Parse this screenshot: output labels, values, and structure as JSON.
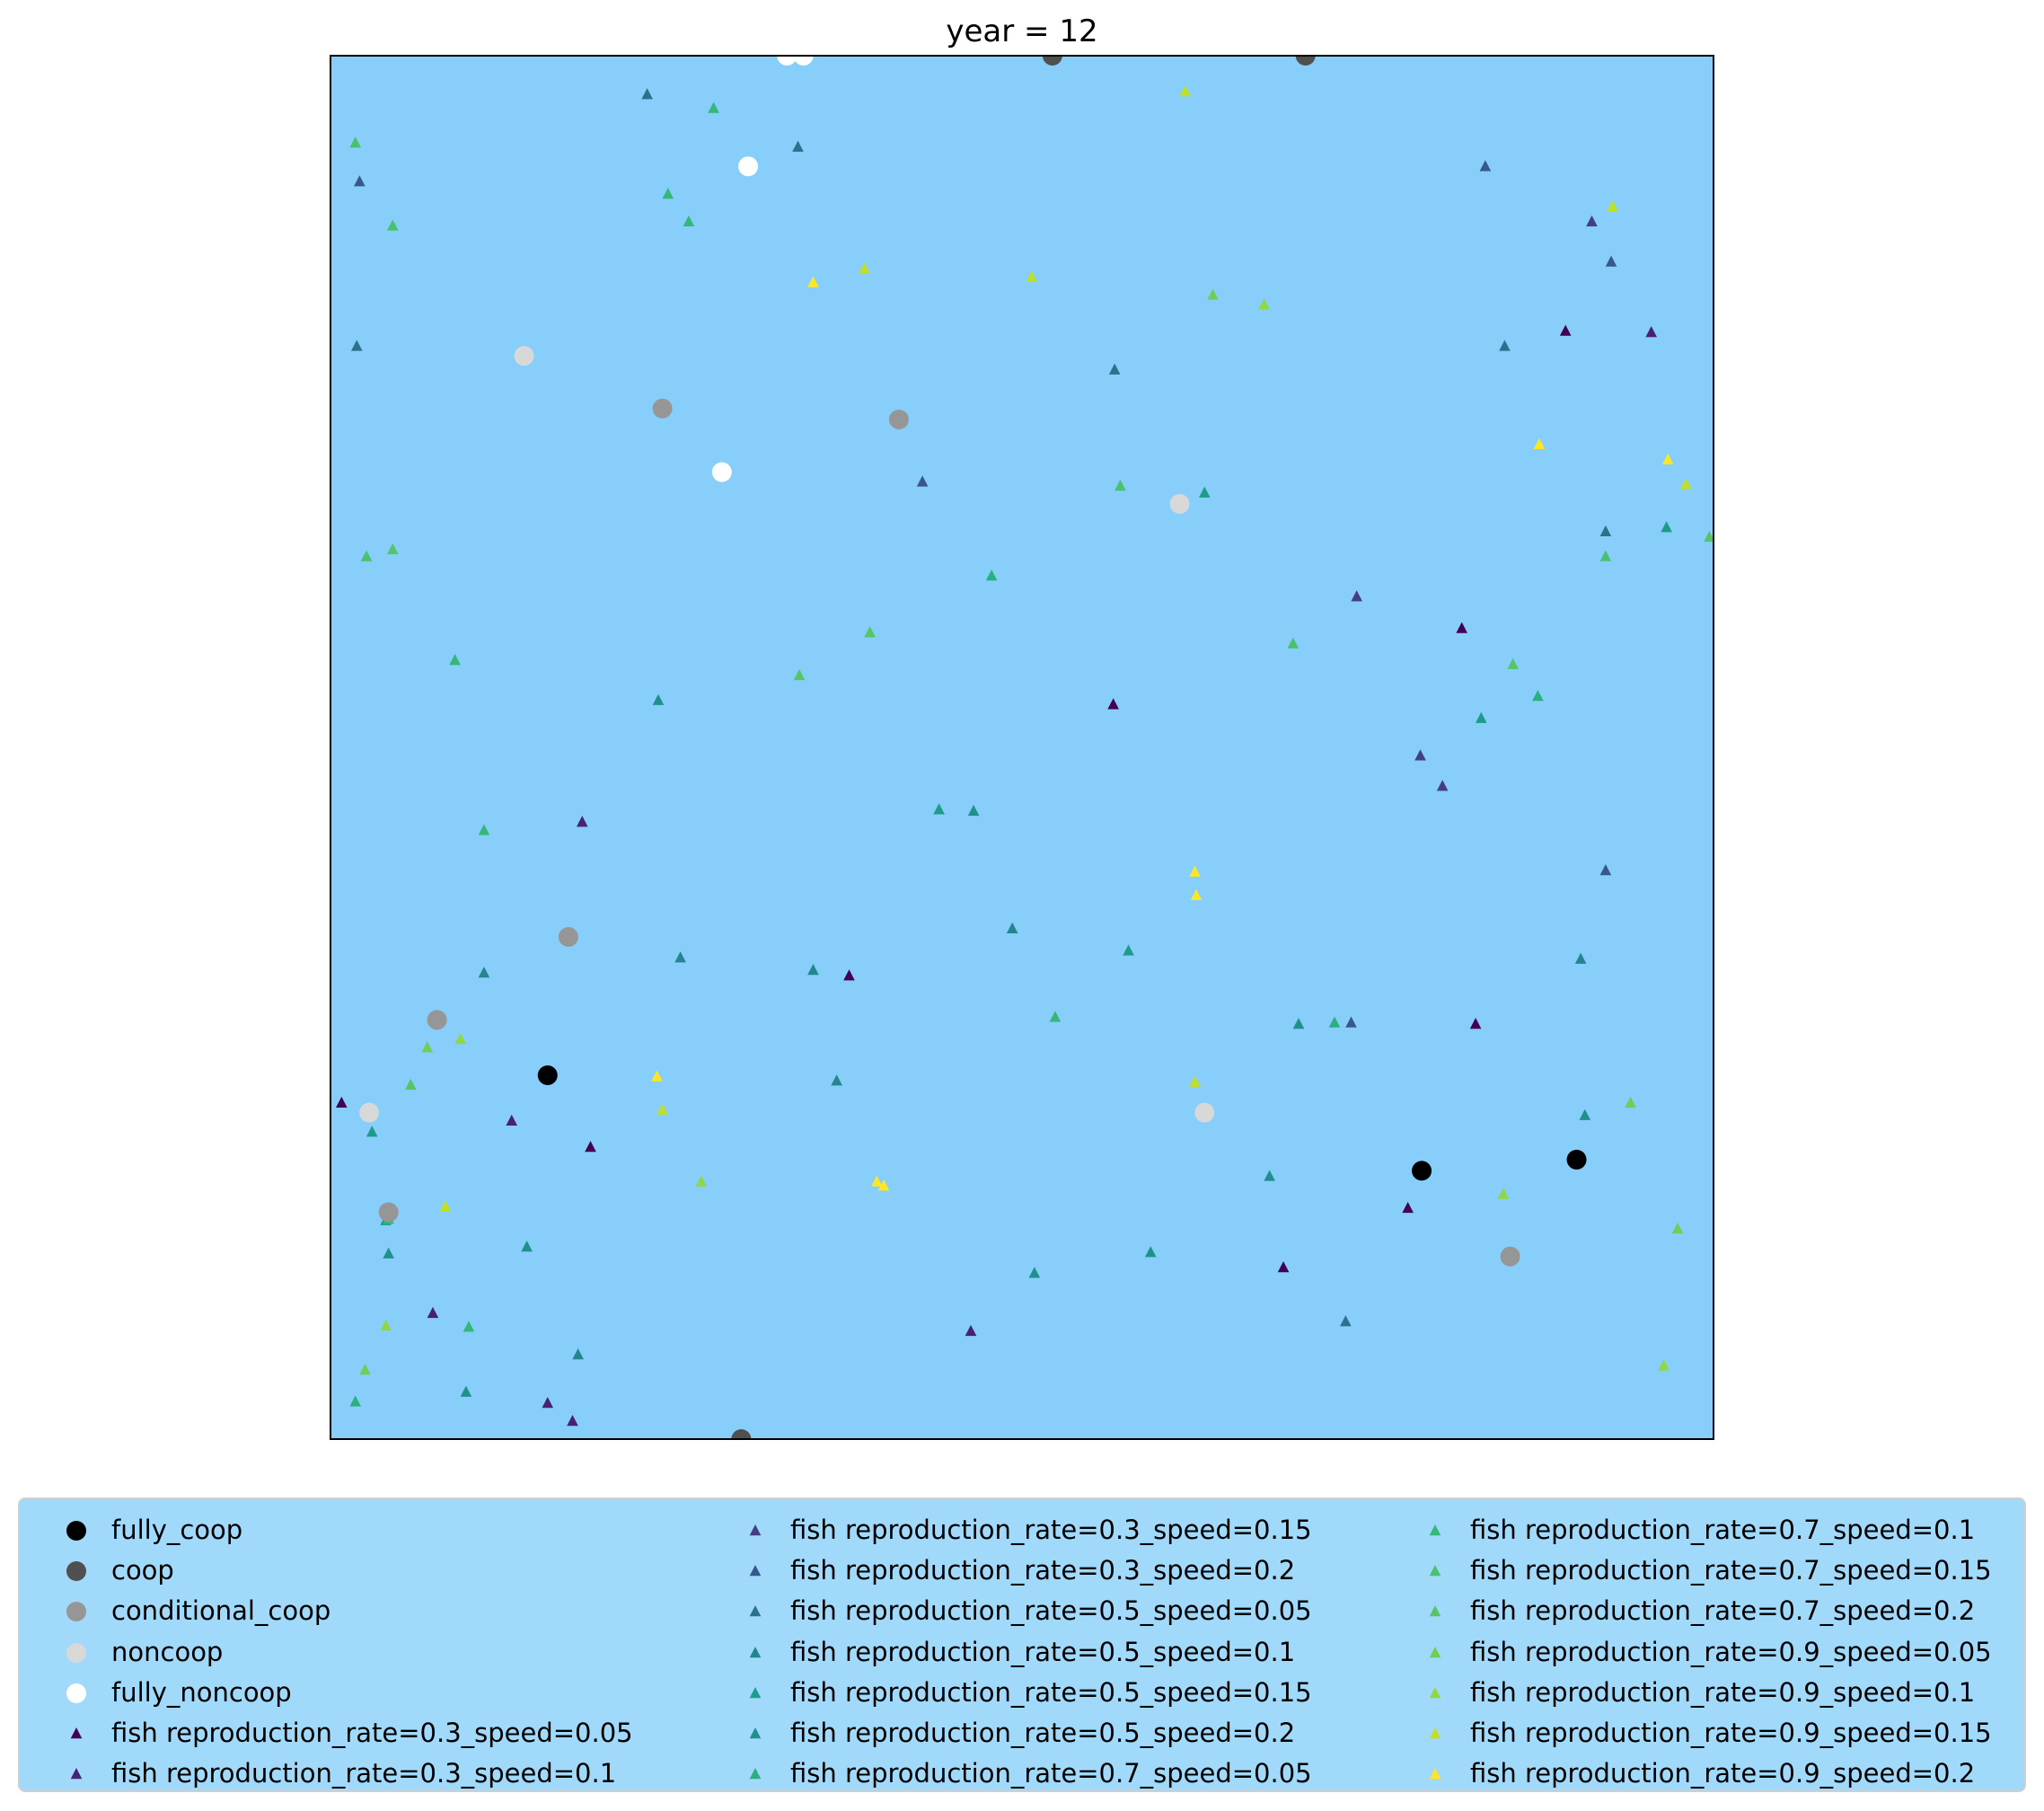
{
  "chart_data": {
    "type": "scatter",
    "title": "year = 12",
    "xlabel": "",
    "ylabel": "",
    "xlim": [
      0,
      1
    ],
    "ylim": [
      0,
      1
    ],
    "axis_ticks": "none",
    "grid": false,
    "background": "#87cefa",
    "legend_placement": "below plot, 3 columns",
    "series": [
      {
        "name": "fully_coop",
        "marker": "circle",
        "color": "#000000",
        "points": [
          [
            0.157,
            0.263
          ],
          [
            0.789,
            0.194
          ],
          [
            0.901,
            0.202
          ]
        ]
      },
      {
        "name": "coop",
        "marker": "circle",
        "color": "#505050",
        "points": [
          [
            0.522,
            1.0
          ],
          [
            0.705,
            1.0
          ],
          [
            0.297,
            0.0
          ]
        ]
      },
      {
        "name": "conditional_coop",
        "marker": "circle",
        "color": "#969696",
        "points": [
          [
            0.24,
            0.745
          ],
          [
            0.411,
            0.737
          ],
          [
            0.172,
            0.363
          ],
          [
            0.077,
            0.303
          ],
          [
            0.042,
            0.164
          ],
          [
            0.853,
            0.132
          ]
        ]
      },
      {
        "name": "noncoop",
        "marker": "circle",
        "color": "#d8d8d8",
        "points": [
          [
            0.14,
            0.783
          ],
          [
            0.614,
            0.676
          ],
          [
            0.028,
            0.236
          ],
          [
            0.632,
            0.236
          ]
        ]
      },
      {
        "name": "fully_noncoop",
        "marker": "circle",
        "color": "#ffffff",
        "points": [
          [
            0.33,
            1.0
          ],
          [
            0.342,
            1.0
          ],
          [
            0.302,
            0.92
          ],
          [
            0.283,
            0.699
          ]
        ]
      },
      {
        "name": "fish reproduction_rate=0.3_speed=0.05",
        "marker": "triangle",
        "color": "#440154",
        "points": [
          [
            0.893,
            0.801
          ],
          [
            0.818,
            0.586
          ],
          [
            0.566,
            0.531
          ],
          [
            0.375,
            0.335
          ],
          [
            0.008,
            0.243
          ],
          [
            0.188,
            0.211
          ],
          [
            0.828,
            0.3
          ],
          [
            0.779,
            0.167
          ],
          [
            0.689,
            0.124
          ]
        ]
      },
      {
        "name": "fish reproduction_rate=0.3_speed=0.1",
        "marker": "triangle",
        "color": "#482173",
        "points": [
          [
            0.955,
            0.8
          ],
          [
            0.182,
            0.446
          ],
          [
            0.131,
            0.23
          ],
          [
            0.074,
            0.091
          ],
          [
            0.157,
            0.026
          ],
          [
            0.175,
            0.013
          ],
          [
            0.463,
            0.078
          ]
        ]
      },
      {
        "name": "fish reproduction_rate=0.3_speed=0.15",
        "marker": "triangle",
        "color": "#433e85",
        "points": [
          [
            0.912,
            0.88
          ],
          [
            0.742,
            0.609
          ],
          [
            0.804,
            0.472
          ],
          [
            0.788,
            0.494
          ]
        ]
      },
      {
        "name": "fish reproduction_rate=0.3_speed=0.2",
        "marker": "triangle",
        "color": "#38588c",
        "points": [
          [
            0.835,
            0.92
          ],
          [
            0.926,
            0.851
          ],
          [
            0.021,
            0.909
          ],
          [
            0.428,
            0.692
          ],
          [
            0.738,
            0.301
          ],
          [
            0.922,
            0.411
          ]
        ]
      },
      {
        "name": "fish reproduction_rate=0.5_speed=0.05",
        "marker": "triangle",
        "color": "#2d708e",
        "points": [
          [
            0.229,
            0.972
          ],
          [
            0.338,
            0.934
          ],
          [
            0.019,
            0.79
          ],
          [
            0.849,
            0.79
          ],
          [
            0.922,
            0.656
          ],
          [
            0.567,
            0.773
          ],
          [
            0.734,
            0.085
          ]
        ]
      },
      {
        "name": "fish reproduction_rate=0.5_speed=0.1",
        "marker": "triangle",
        "color": "#25858e",
        "points": [
          [
            0.111,
            0.337
          ],
          [
            0.253,
            0.348
          ],
          [
            0.349,
            0.339
          ],
          [
            0.493,
            0.369
          ],
          [
            0.904,
            0.347
          ],
          [
            0.179,
            0.061
          ],
          [
            0.366,
            0.259
          ]
        ]
      },
      {
        "name": "fish reproduction_rate=0.5_speed=0.15",
        "marker": "triangle",
        "color": "#1e9b8a",
        "points": [
          [
            0.632,
            0.684
          ],
          [
            0.966,
            0.659
          ],
          [
            0.44,
            0.455
          ],
          [
            0.832,
            0.521
          ],
          [
            0.03,
            0.222
          ],
          [
            0.04,
            0.158
          ],
          [
            0.577,
            0.353
          ]
        ]
      },
      {
        "name": "fish reproduction_rate=0.5_speed=0.2",
        "marker": "triangle",
        "color": "#21908d",
        "points": [
          [
            0.237,
            0.534
          ],
          [
            0.465,
            0.454
          ],
          [
            0.7,
            0.3
          ],
          [
            0.907,
            0.234
          ],
          [
            0.679,
            0.19
          ],
          [
            0.593,
            0.135
          ],
          [
            0.509,
            0.12
          ],
          [
            0.042,
            0.134
          ],
          [
            0.142,
            0.139
          ],
          [
            0.098,
            0.034
          ]
        ]
      },
      {
        "name": "fish reproduction_rate=0.7_speed=0.05",
        "marker": "triangle",
        "color": "#2ab07f",
        "points": [
          [
            0.478,
            0.624
          ],
          [
            0.873,
            0.537
          ],
          [
            0.018,
            0.027
          ],
          [
            0.726,
            0.301
          ]
        ]
      },
      {
        "name": "fish reproduction_rate=0.7_speed=0.1",
        "marker": "triangle",
        "color": "#35b779",
        "points": [
          [
            0.277,
            0.962
          ],
          [
            0.244,
            0.9
          ],
          [
            0.259,
            0.88
          ],
          [
            0.09,
            0.563
          ],
          [
            0.111,
            0.44
          ],
          [
            0.524,
            0.305
          ],
          [
            0.042,
            0.159
          ],
          [
            0.1,
            0.081
          ]
        ]
      },
      {
        "name": "fish reproduction_rate=0.7_speed=0.15",
        "marker": "triangle",
        "color": "#4ac16d",
        "points": [
          [
            0.018,
            0.937
          ],
          [
            0.045,
            0.877
          ],
          [
            0.026,
            0.638
          ],
          [
            0.571,
            0.689
          ],
          [
            0.696,
            0.575
          ],
          [
            0.922,
            0.638
          ]
        ]
      },
      {
        "name": "fish reproduction_rate=0.7_speed=0.2",
        "marker": "triangle",
        "color": "#56c566",
        "points": [
          [
            0.045,
            0.643
          ],
          [
            0.339,
            0.552
          ],
          [
            0.39,
            0.583
          ],
          [
            0.058,
            0.256
          ],
          [
            0.997,
            0.652
          ],
          [
            0.855,
            0.56
          ]
        ]
      },
      {
        "name": "fish reproduction_rate=0.9_speed=0.05",
        "marker": "triangle",
        "color": "#6ece58",
        "points": [
          [
            0.638,
            0.827
          ],
          [
            0.07,
            0.283
          ],
          [
            0.94,
            0.243
          ],
          [
            0.974,
            0.152
          ],
          [
            0.025,
            0.05
          ]
        ]
      },
      {
        "name": "fish reproduction_rate=0.9_speed=0.1",
        "marker": "triangle",
        "color": "#8fd744",
        "points": [
          [
            0.675,
            0.82
          ],
          [
            0.094,
            0.289
          ],
          [
            0.268,
            0.186
          ],
          [
            0.848,
            0.177
          ],
          [
            0.964,
            0.053
          ],
          [
            0.04,
            0.082
          ]
        ]
      },
      {
        "name": "fish reproduction_rate=0.9_speed=0.15",
        "marker": "triangle",
        "color": "#c0df25",
        "points": [
          [
            0.618,
            0.974
          ],
          [
            0.927,
            0.891
          ],
          [
            0.386,
            0.846
          ],
          [
            0.507,
            0.84
          ],
          [
            0.98,
            0.69
          ],
          [
            0.625,
            0.258
          ],
          [
            0.083,
            0.168
          ],
          [
            0.24,
            0.238
          ]
        ]
      },
      {
        "name": "fish reproduction_rate=0.9_speed=0.2",
        "marker": "triangle",
        "color": "#fde725",
        "points": [
          [
            0.349,
            0.836
          ],
          [
            0.874,
            0.719
          ],
          [
            0.967,
            0.708
          ],
          [
            0.625,
            0.41
          ],
          [
            0.626,
            0.393
          ],
          [
            0.236,
            0.262
          ],
          [
            0.395,
            0.186
          ],
          [
            0.4,
            0.183
          ]
        ]
      }
    ]
  }
}
